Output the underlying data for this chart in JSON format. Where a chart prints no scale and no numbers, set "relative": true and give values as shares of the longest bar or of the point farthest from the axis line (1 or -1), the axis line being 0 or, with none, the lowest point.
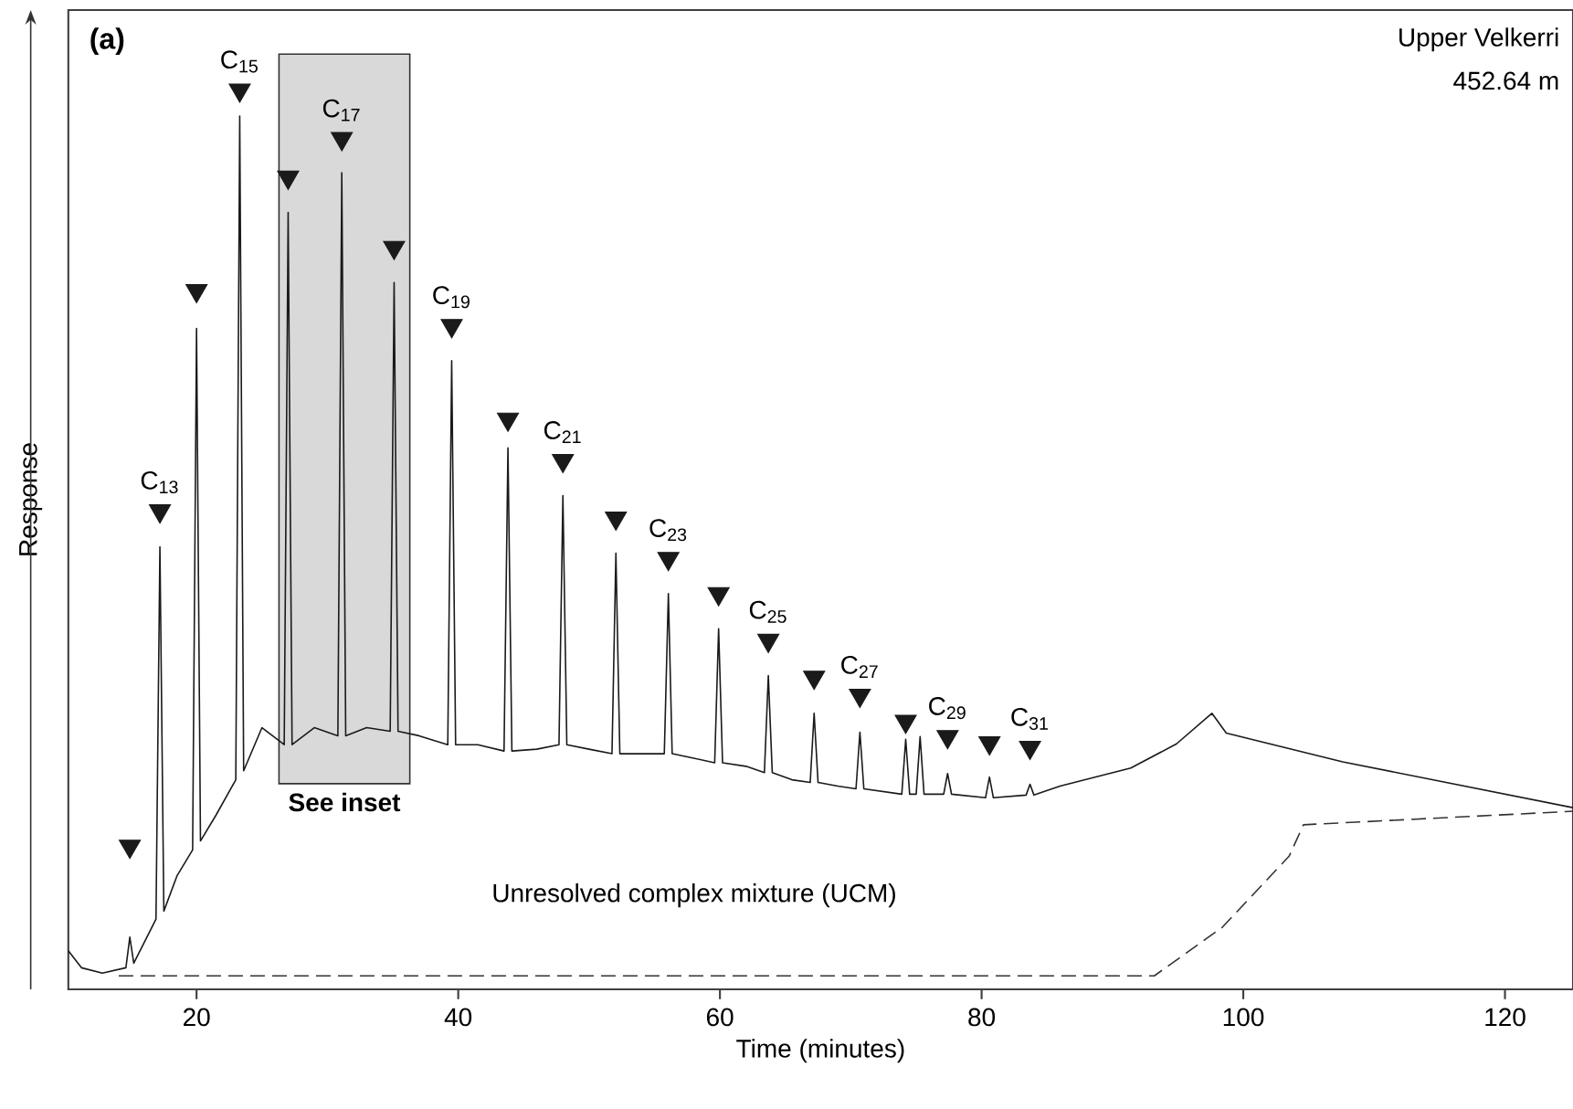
{
  "chart_data": {
    "type": "line",
    "relative": true,
    "xlabel": "Time (minutes)",
    "ylabel": "Response",
    "xlim": [
      10.2,
      125.2
    ],
    "xticks": [
      20,
      40,
      60,
      80,
      100,
      120
    ],
    "series": [
      {
        "color": "#1a1a1a",
        "line_style": "solid",
        "x": [
          10.2,
          11.2,
          12.8,
          14.6,
          14.9,
          15.2,
          16.9,
          17.2,
          17.5,
          18.5,
          19.7,
          20.0,
          20.3,
          21.5,
          23.0,
          23.3,
          23.6,
          25.0,
          26.7,
          27.0,
          27.3,
          29.0,
          30.8,
          31.1,
          31.4,
          33.0,
          34.8,
          35.1,
          35.4,
          37.0,
          39.2,
          39.5,
          39.8,
          41.5,
          43.5,
          43.8,
          44.1,
          46.0,
          47.7,
          48.0,
          48.3,
          50.0,
          51.75,
          52.05,
          52.35,
          54.0,
          55.75,
          56.06,
          56.35,
          58.0,
          59.6,
          59.9,
          60.2,
          62.0,
          63.4,
          63.7,
          64.0,
          65.5,
          66.9,
          67.2,
          67.5,
          69.0,
          70.4,
          70.7,
          71.0,
          73.9,
          74.2,
          74.5,
          75.0,
          75.3,
          75.6,
          77.1,
          77.4,
          77.7,
          80.3,
          80.6,
          80.9,
          83.4,
          83.7,
          84.0,
          86.0,
          91.4,
          94.9,
          97.6,
          98.7,
          107.6,
          125.2
        ],
        "values": [
          0.043,
          0.024,
          0.018,
          0.024,
          0.058,
          0.029,
          0.078,
          0.492,
          0.087,
          0.126,
          0.155,
          0.735,
          0.165,
          0.194,
          0.233,
          0.971,
          0.243,
          0.291,
          0.272,
          0.864,
          0.272,
          0.291,
          0.282,
          0.908,
          0.282,
          0.291,
          0.287,
          0.786,
          0.287,
          0.282,
          0.272,
          0.699,
          0.272,
          0.272,
          0.265,
          0.602,
          0.265,
          0.267,
          0.272,
          0.549,
          0.272,
          0.267,
          0.262,
          0.485,
          0.262,
          0.262,
          0.262,
          0.44,
          0.262,
          0.257,
          0.252,
          0.401,
          0.252,
          0.248,
          0.241,
          0.349,
          0.241,
          0.233,
          0.23,
          0.307,
          0.23,
          0.226,
          0.223,
          0.286,
          0.223,
          0.217,
          0.278,
          0.217,
          0.217,
          0.281,
          0.217,
          0.217,
          0.24,
          0.217,
          0.213,
          0.236,
          0.213,
          0.216,
          0.228,
          0.216,
          0.226,
          0.246,
          0.273,
          0.307,
          0.285,
          0.253,
          0.202
        ]
      },
      {
        "type": "line",
        "color": "#333333",
        "line_style": "dashed",
        "x": [
          14.05,
          93.2,
          98.4,
          103.5,
          104.6,
          125.2
        ],
        "values": [
          0.015,
          0.015,
          0.069,
          0.148,
          0.183,
          0.198
        ]
      },
      {
        "type": "scatter",
        "color": "#1a1a1a",
        "marker": "triangle",
        "x": [
          14.9,
          17.2,
          20.0,
          23.3,
          27.0,
          31.1,
          35.1,
          39.5,
          43.8,
          48.0,
          52.05,
          56.06,
          59.9,
          63.7,
          67.2,
          70.7,
          74.2,
          77.4,
          80.6,
          83.7
        ],
        "values": [
          0.159,
          0.532,
          0.777,
          1.0,
          0.903,
          0.946,
          0.825,
          0.738,
          0.634,
          0.588,
          0.524,
          0.479,
          0.44,
          0.388,
          0.347,
          0.327,
          0.298,
          0.281,
          0.274,
          0.269
        ]
      }
    ],
    "bands": [
      {
        "axis": "x",
        "from": 26.3,
        "to": 36.3,
        "label": "See inset",
        "color": "#d9d9d9"
      }
    ],
    "annotations": [
      "(a)",
      "Upper Velkerri",
      "452.64 m",
      "Unresolved complex mixture (UCM)",
      {
        "text": "C$_{13}$",
        "x": 17.2,
        "y": 0.532
      },
      {
        "text": "C$_{15}$",
        "x": 23.3,
        "y": 1.0
      },
      {
        "text": "C$_{17}$",
        "x": 31.1,
        "y": 0.946
      },
      {
        "text": "C$_{19}$",
        "x": 39.5,
        "y": 0.738
      },
      {
        "text": "C$_{21}$",
        "x": 48.0,
        "y": 0.588
      },
      {
        "text": "C$_{23}$",
        "x": 56.06,
        "y": 0.479
      },
      {
        "text": "C$_{25}$",
        "x": 63.7,
        "y": 0.388
      },
      {
        "text": "C$_{27}$",
        "x": 70.7,
        "y": 0.327
      },
      {
        "text": "C$_{29}$",
        "x": 77.4,
        "y": 0.281
      },
      {
        "text": "C$_{31}$",
        "x": 83.7,
        "y": 0.269
      }
    ]
  }
}
